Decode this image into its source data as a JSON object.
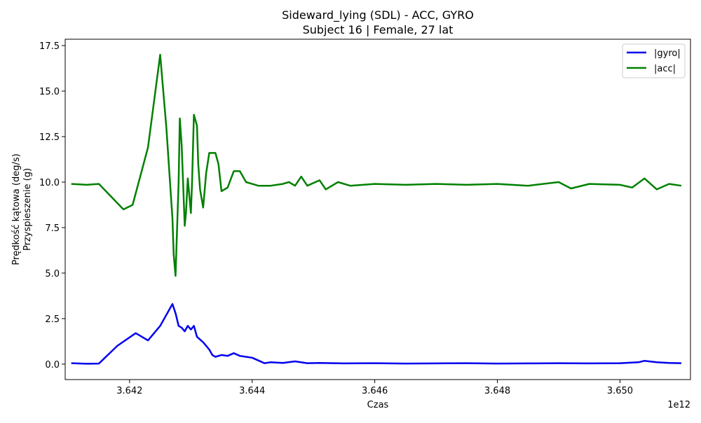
{
  "chart_data": {
    "type": "line",
    "title": "Sideward_lying (SDL) - ACC, GYRO",
    "subtitle": "Subject 16 | Female, 27 lat",
    "xlabel": "Czas",
    "ylabel_line1": "Prędkość kątowa (deg/s)",
    "ylabel_line2": "Przyspieszenie (g)",
    "x_offset_label": "1e12",
    "xlim": [
      3.64095,
      3.65115
    ],
    "ylim": [
      -0.85,
      17.85
    ],
    "x_ticks": [
      3.642,
      3.644,
      3.646,
      3.648,
      3.65
    ],
    "x_tick_labels": [
      "3.642",
      "3.644",
      "3.646",
      "3.648",
      "3.650"
    ],
    "y_ticks": [
      0,
      2.5,
      5,
      7.5,
      10,
      12.5,
      15,
      17.5
    ],
    "y_tick_labels": [
      "0.0",
      "2.5",
      "5.0",
      "7.5",
      "10.0",
      "12.5",
      "15.0",
      "17.5"
    ],
    "grid": false,
    "legend_position": "top-right",
    "series": [
      {
        "name": "|gyro|",
        "color": "#0000ee",
        "points": [
          [
            3.64105,
            0.05
          ],
          [
            3.6413,
            0.02
          ],
          [
            3.6415,
            0.03
          ],
          [
            3.6418,
            1.0
          ],
          [
            3.6421,
            1.7
          ],
          [
            3.6423,
            1.3
          ],
          [
            3.6425,
            2.1
          ],
          [
            3.6427,
            3.3
          ],
          [
            3.64275,
            2.8
          ],
          [
            3.6428,
            2.1
          ],
          [
            3.64285,
            2.0
          ],
          [
            3.6429,
            1.8
          ],
          [
            3.64295,
            2.1
          ],
          [
            3.643,
            1.9
          ],
          [
            3.64305,
            2.1
          ],
          [
            3.6431,
            1.5
          ],
          [
            3.6432,
            1.2
          ],
          [
            3.6433,
            0.8
          ],
          [
            3.64335,
            0.5
          ],
          [
            3.6434,
            0.4
          ],
          [
            3.6435,
            0.5
          ],
          [
            3.6436,
            0.45
          ],
          [
            3.6437,
            0.6
          ],
          [
            3.6438,
            0.45
          ],
          [
            3.6439,
            0.4
          ],
          [
            3.644,
            0.35
          ],
          [
            3.6441,
            0.2
          ],
          [
            3.6442,
            0.05
          ],
          [
            3.6443,
            0.1
          ],
          [
            3.6445,
            0.06
          ],
          [
            3.6447,
            0.15
          ],
          [
            3.6449,
            0.05
          ],
          [
            3.6451,
            0.06
          ],
          [
            3.6455,
            0.04
          ],
          [
            3.646,
            0.05
          ],
          [
            3.6465,
            0.03
          ],
          [
            3.647,
            0.04
          ],
          [
            3.6475,
            0.05
          ],
          [
            3.648,
            0.03
          ],
          [
            3.6485,
            0.04
          ],
          [
            3.649,
            0.05
          ],
          [
            3.6495,
            0.04
          ],
          [
            3.65,
            0.05
          ],
          [
            3.6503,
            0.1
          ],
          [
            3.6504,
            0.18
          ],
          [
            3.6506,
            0.1
          ],
          [
            3.6508,
            0.06
          ],
          [
            3.651,
            0.05
          ]
        ]
      },
      {
        "name": "|acc|",
        "color": "#008000",
        "points": [
          [
            3.64105,
            9.9
          ],
          [
            3.6413,
            9.85
          ],
          [
            3.6415,
            9.9
          ],
          [
            3.6419,
            8.5
          ],
          [
            3.64205,
            8.75
          ],
          [
            3.6423,
            11.9
          ],
          [
            3.6425,
            17.0
          ],
          [
            3.6426,
            13.0
          ],
          [
            3.6427,
            8.0
          ],
          [
            3.64272,
            6.0
          ],
          [
            3.64275,
            4.85
          ],
          [
            3.6428,
            10.0
          ],
          [
            3.64282,
            13.5
          ],
          [
            3.64285,
            12.0
          ],
          [
            3.6429,
            7.6
          ],
          [
            3.64292,
            8.3
          ],
          [
            3.64295,
            10.2
          ],
          [
            3.643,
            8.3
          ],
          [
            3.64302,
            10.0
          ],
          [
            3.64305,
            13.7
          ],
          [
            3.6431,
            13.1
          ],
          [
            3.64312,
            11.0
          ],
          [
            3.64315,
            9.6
          ],
          [
            3.6432,
            8.6
          ],
          [
            3.64325,
            10.5
          ],
          [
            3.6433,
            11.6
          ],
          [
            3.6434,
            11.6
          ],
          [
            3.64345,
            11.0
          ],
          [
            3.6435,
            9.5
          ],
          [
            3.6436,
            9.7
          ],
          [
            3.6437,
            10.6
          ],
          [
            3.6438,
            10.6
          ],
          [
            3.6439,
            10.0
          ],
          [
            3.644,
            9.9
          ],
          [
            3.6441,
            9.8
          ],
          [
            3.6443,
            9.8
          ],
          [
            3.6445,
            9.9
          ],
          [
            3.6446,
            10.0
          ],
          [
            3.6447,
            9.8
          ],
          [
            3.6448,
            10.3
          ],
          [
            3.6449,
            9.8
          ],
          [
            3.6451,
            10.1
          ],
          [
            3.6452,
            9.6
          ],
          [
            3.6454,
            10.0
          ],
          [
            3.6456,
            9.8
          ],
          [
            3.646,
            9.9
          ],
          [
            3.6465,
            9.85
          ],
          [
            3.647,
            9.9
          ],
          [
            3.6475,
            9.85
          ],
          [
            3.648,
            9.9
          ],
          [
            3.6485,
            9.8
          ],
          [
            3.649,
            10.0
          ],
          [
            3.6492,
            9.65
          ],
          [
            3.6495,
            9.9
          ],
          [
            3.65,
            9.85
          ],
          [
            3.6502,
            9.7
          ],
          [
            3.6504,
            10.2
          ],
          [
            3.6506,
            9.6
          ],
          [
            3.6508,
            9.9
          ],
          [
            3.651,
            9.8
          ]
        ]
      }
    ]
  }
}
